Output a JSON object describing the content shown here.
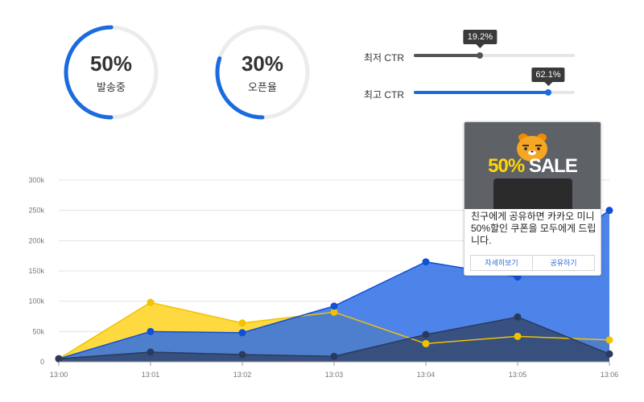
{
  "stats": [
    {
      "value": "50%",
      "label": "발송중",
      "progress": 0.5,
      "color": "#1a6be0"
    },
    {
      "value": "30%",
      "label": "오픈율",
      "progress": 0.3,
      "color": "#1a6be0"
    }
  ],
  "ctr": [
    {
      "label": "최저 CTR",
      "value": "19.2%",
      "fraction": 0.412,
      "color": "#555555"
    },
    {
      "label": "최고 CTR",
      "value": "62.1%",
      "fraction": 0.835,
      "color": "#1a6be0"
    }
  ],
  "chart_data": {
    "type": "area",
    "x": [
      "13:00",
      "13:01",
      "13:02",
      "13:03",
      "13:04",
      "13:05",
      "13:06"
    ],
    "ylim": [
      0,
      300000
    ],
    "yticks": [
      {
        "value": 0,
        "label": "0"
      },
      {
        "value": 50000,
        "label": "50k"
      },
      {
        "value": 100000,
        "label": "100k"
      },
      {
        "value": 150000,
        "label": "150k"
      },
      {
        "value": 200000,
        "label": "200k"
      },
      {
        "value": 250000,
        "label": "250k"
      },
      {
        "value": 300000,
        "label": "300k"
      }
    ],
    "grid": true,
    "series": [
      {
        "values": [
          5000,
          98000,
          64000,
          82000,
          30000,
          42000,
          36000
        ],
        "color": "#ffd21f",
        "line": "#f2c200"
      },
      {
        "values": [
          5000,
          50000,
          48000,
          92000,
          165000,
          140000,
          250000
        ],
        "color": "#2f6fe6",
        "line": "#1050d6"
      },
      {
        "values": [
          5000,
          16000,
          12000,
          9000,
          45000,
          74000,
          13000
        ],
        "color": "#34486f",
        "line": "#2a3a5e"
      }
    ]
  },
  "promo": {
    "sale_percent": "50%",
    "sale_word": "SALE",
    "message": "친구에게 공유하면 카카오 미니 50%할인 쿠폰을 모두에게 드립니다.",
    "detail_button": "자세히보기",
    "share_button": "공유하기"
  }
}
